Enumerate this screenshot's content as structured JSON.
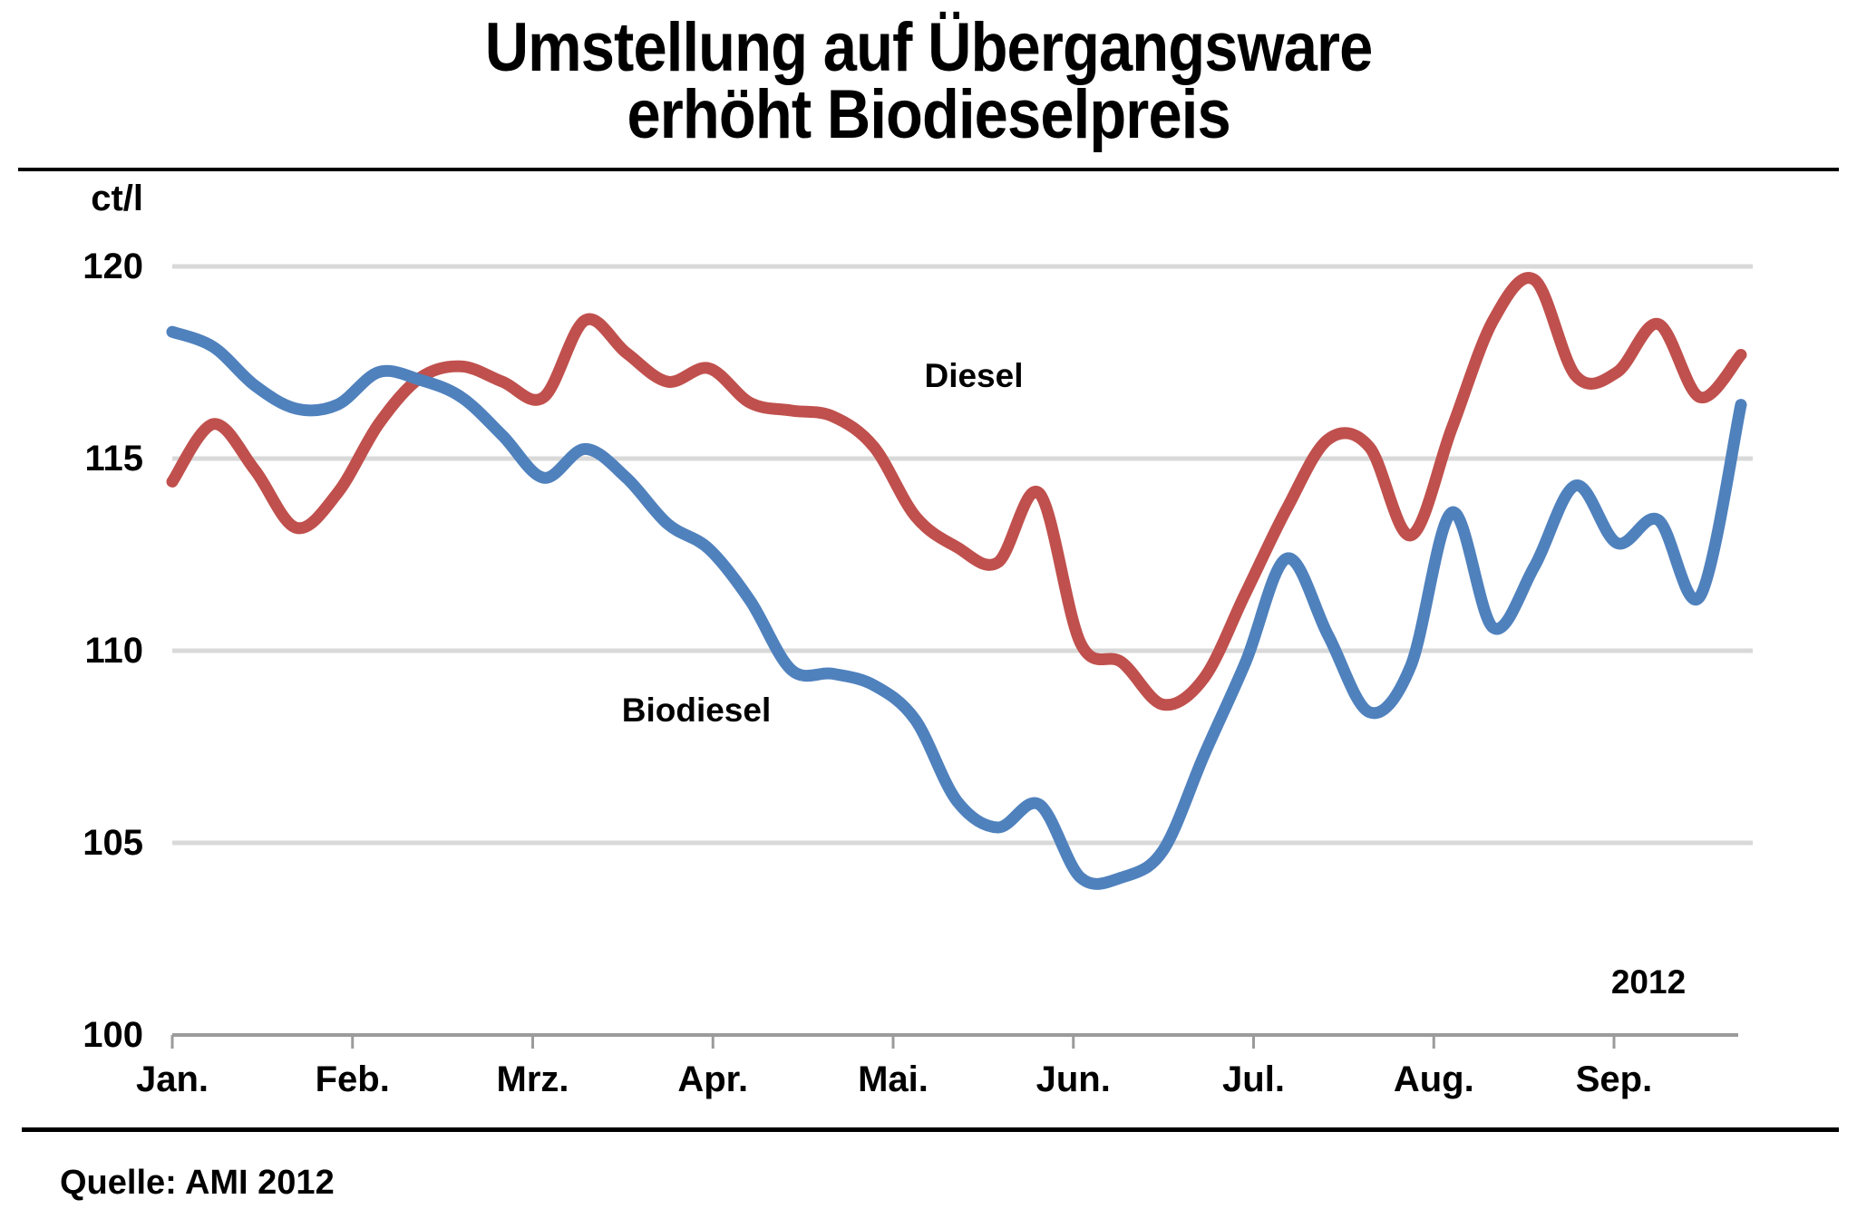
{
  "title": {
    "line1": "Umstellung auf Übergangsware",
    "line2": "erhöht Biodieselpreis"
  },
  "source": "Quelle: AMI 2012",
  "chart_data": {
    "type": "line",
    "title": "Umstellung auf Übergangsware erhöht Biodieselpreis",
    "ylabel": "ct/l",
    "year_annotation": "2012",
    "ylim": [
      100,
      120
    ],
    "yticks": [
      120,
      115,
      110,
      105,
      100
    ],
    "grid": "horizontal-only",
    "x_tick_labels": [
      "Jan.",
      "Feb.",
      "Mrz.",
      "Apr.",
      "Mai.",
      "Jun.",
      "Jul.",
      "Aug.",
      "Sep."
    ],
    "x_resolution": "weekly",
    "legend_position": "inline-labels",
    "colors": {
      "diesel": "#C0504D",
      "biodiesel": "#4F81BD",
      "gridline": "#D9D9D9",
      "axis": "#9B9B9B"
    },
    "series": [
      {
        "name": "Diesel",
        "color": "#C0504D",
        "values": [
          114.4,
          115.9,
          114.7,
          113.2,
          114.1,
          115.9,
          117.1,
          117.4,
          117.0,
          116.6,
          118.6,
          117.75,
          117.0,
          117.35,
          116.45,
          116.25,
          116.1,
          115.3,
          113.5,
          112.7,
          112.3,
          114.1,
          110.2,
          109.7,
          108.6,
          109.3,
          111.5,
          113.7,
          115.5,
          115.3,
          113.0,
          115.8,
          118.6,
          119.65,
          117.15,
          117.25,
          118.5,
          116.6,
          117.7
        ]
      },
      {
        "name": "Biodiesel",
        "color": "#4F81BD",
        "values": [
          118.3,
          117.9,
          116.9,
          116.3,
          116.4,
          117.25,
          117.05,
          116.6,
          115.6,
          114.5,
          115.25,
          114.5,
          113.3,
          112.65,
          111.3,
          109.5,
          109.4,
          109.1,
          108.2,
          106.1,
          105.4,
          106.0,
          104.1,
          104.1,
          104.8,
          107.3,
          109.7,
          112.4,
          110.4,
          108.4,
          109.6,
          113.6,
          110.6,
          112.2,
          114.3,
          112.8,
          113.4,
          111.4,
          116.4
        ]
      }
    ]
  }
}
